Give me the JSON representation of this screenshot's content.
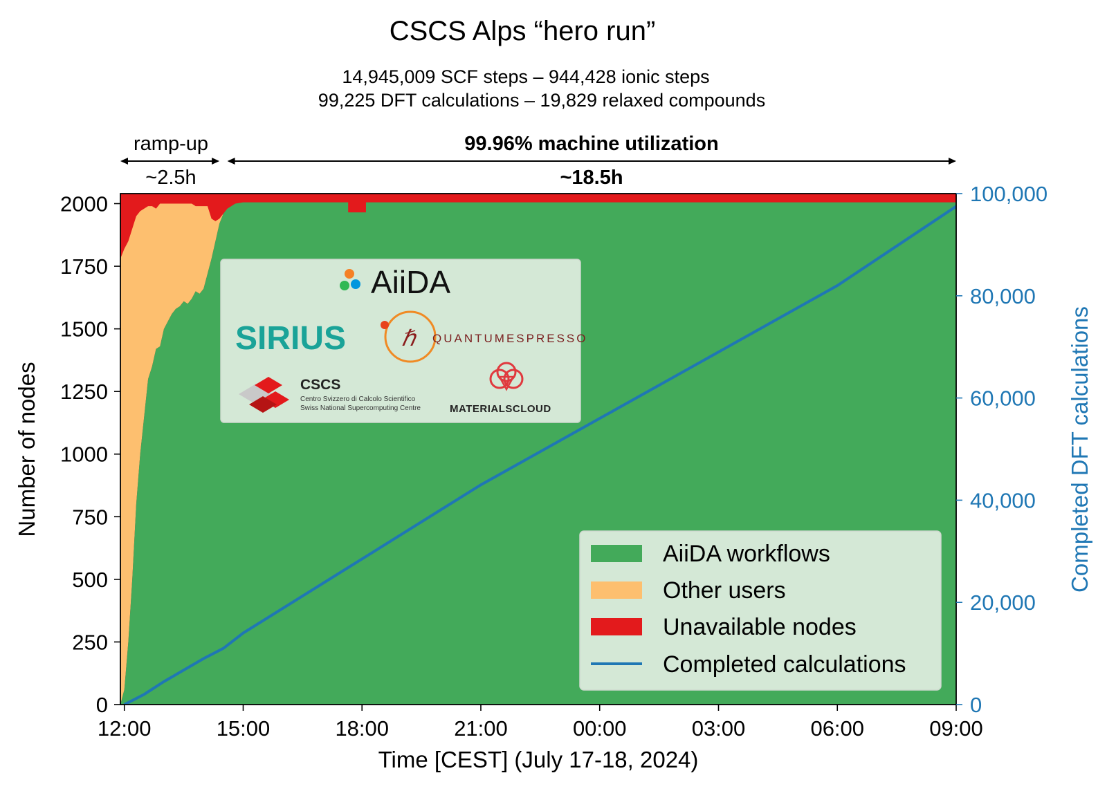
{
  "chart_data": {
    "type": "area",
    "title": "CSCS Alps “hero run”",
    "subtitle_lines": [
      "14,945,009 SCF steps – 944,428 ionic steps",
      "99,225 DFT calculations – 19,829 relaxed compounds"
    ],
    "xlabel": "Time [CEST] (July 17-18, 2024)",
    "ylabel_left": "Number of nodes",
    "ylabel_right": "Completed DFT calculations",
    "x_unit": "hours",
    "xlim": [
      -0.1,
      21.0
    ],
    "x_ticks": [
      {
        "x": 0,
        "label": "12:00"
      },
      {
        "x": 3,
        "label": "15:00"
      },
      {
        "x": 6,
        "label": "18:00"
      },
      {
        "x": 9,
        "label": "21:00"
      },
      {
        "x": 12,
        "label": "00:00"
      },
      {
        "x": 15,
        "label": "03:00"
      },
      {
        "x": 18,
        "label": "06:00"
      },
      {
        "x": 21,
        "label": "09:00"
      }
    ],
    "ylim_left": [
      0,
      2040
    ],
    "y_ticks_left": [
      {
        "y": 0,
        "label": "0"
      },
      {
        "y": 250,
        "label": "250"
      },
      {
        "y": 500,
        "label": "500"
      },
      {
        "y": 750,
        "label": "750"
      },
      {
        "y": 1000,
        "label": "1000"
      },
      {
        "y": 1250,
        "label": "1250"
      },
      {
        "y": 1500,
        "label": "1500"
      },
      {
        "y": 1750,
        "label": "1750"
      },
      {
        "y": 2000,
        "label": "2000"
      }
    ],
    "ylim_right": [
      0,
      100000
    ],
    "y_ticks_right": [
      {
        "y": 0,
        "label": "0"
      },
      {
        "y": 20000,
        "label": "20,000"
      },
      {
        "y": 40000,
        "label": "40,000"
      },
      {
        "y": 60000,
        "label": "60,000"
      },
      {
        "y": 80000,
        "label": "80,000"
      },
      {
        "y": 100000,
        "label": "100,000"
      }
    ],
    "total_nodes": 2040,
    "series": [
      {
        "name": "AiiDA workflows",
        "kind": "stacked-area",
        "color": "#43aa5a",
        "x": [
          -0.1,
          0.0,
          0.1,
          0.2,
          0.3,
          0.4,
          0.5,
          0.6,
          0.7,
          0.8,
          0.9,
          1.0,
          1.1,
          1.2,
          1.3,
          1.4,
          1.5,
          1.6,
          1.7,
          1.8,
          1.9,
          2.0,
          2.1,
          2.2,
          2.3,
          2.4,
          2.5,
          2.6,
          2.8,
          3.0,
          5.0,
          5.5,
          6.0,
          21.0
        ],
        "values": [
          0,
          60,
          250,
          500,
          800,
          1000,
          1150,
          1300,
          1350,
          1420,
          1430,
          1500,
          1530,
          1560,
          1580,
          1590,
          1610,
          1600,
          1620,
          1650,
          1640,
          1660,
          1720,
          1780,
          1850,
          1920,
          1960,
          1980,
          2000,
          2005,
          2005,
          2005,
          2005,
          2005
        ]
      },
      {
        "name": "Other users",
        "kind": "stacked-area",
        "color": "#fdbf6f",
        "x": [
          -0.1,
          0.0,
          0.1,
          0.2,
          0.3,
          0.4,
          0.5,
          0.6,
          0.7,
          0.8,
          0.9,
          1.0,
          1.1,
          1.2,
          1.3,
          1.4,
          1.5,
          1.6,
          1.7,
          1.8,
          1.9,
          2.0,
          2.1,
          2.2,
          2.3,
          2.4,
          2.5,
          2.6,
          2.8,
          3.0,
          5.0,
          5.5,
          6.0,
          21.0
        ],
        "values": [
          1780,
          1760,
          1600,
          1400,
          1150,
          970,
          830,
          690,
          640,
          560,
          570,
          500,
          470,
          440,
          420,
          410,
          390,
          400,
          380,
          340,
          350,
          330,
          270,
          160,
          80,
          20,
          0,
          0,
          0,
          0,
          0,
          0,
          0,
          0
        ]
      },
      {
        "name": "Unavailable nodes",
        "kind": "stacked-area",
        "color": "#e31a1c",
        "note": "remainder up to total_nodes (drawn as background)"
      },
      {
        "name": "Completed calculations",
        "kind": "line",
        "axis": "right",
        "color": "#1f77b4",
        "x": [
          0.0,
          0.5,
          1.0,
          2.0,
          2.5,
          3.0,
          6.0,
          9.0,
          12.0,
          15.0,
          18.0,
          21.0
        ],
        "values": [
          0,
          2000,
          4500,
          9000,
          11000,
          14000,
          28500,
          43000,
          56000,
          69000,
          82000,
          97500
        ]
      }
    ],
    "unavailable_dip": {
      "x_start": 5.65,
      "x_end": 6.1,
      "level": 1965
    },
    "annotations": {
      "rampup_label": "ramp-up",
      "rampup_duration": "~2.5h",
      "rampup_range": [
        -0.1,
        2.4
      ],
      "main_label": "99.96% machine utilization",
      "main_duration": "~18.5h",
      "main_range": [
        2.6,
        21.0
      ]
    },
    "legend": {
      "placement": "lower-right",
      "entries": [
        "AiiDA workflows",
        "Other users",
        "Unavailable nodes",
        "Completed calculations"
      ]
    },
    "logos": {
      "aiida": "AiiDA",
      "sirius": "SIRIUS",
      "qe": "QUANTUMESPRESSO",
      "cscs": "CSCS",
      "cscs_line1": "Centro Svizzero di Calcolo Scientifico",
      "cscs_line2": "Swiss National Supercomputing Centre",
      "materials_cloud": "MATERIALSCLOUD"
    },
    "grid": false
  }
}
